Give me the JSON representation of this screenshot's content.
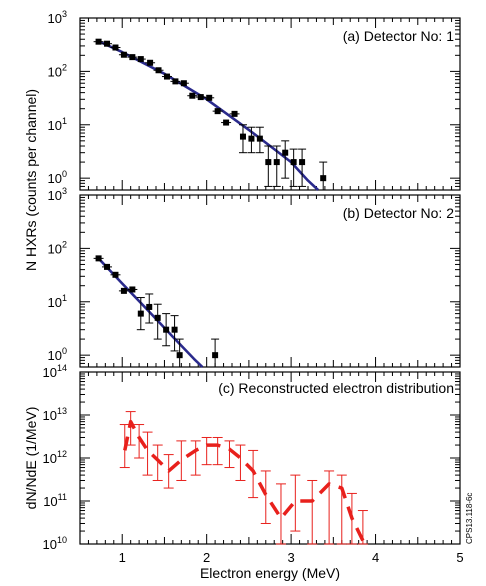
{
  "figure_code": "CPS13.118-6c",
  "colors": {
    "fit": "#2a2a8c",
    "reconstruction": "#e8201c",
    "points": "#000000",
    "axes": "#000000"
  },
  "chart_data": [
    {
      "type": "scatter",
      "title": "(a) Detector No: 1",
      "xlim": [
        0.5,
        5
      ],
      "ylim": [
        0.6,
        1000
      ],
      "yscale": "log",
      "y_ticks": [
        {
          "base": "10",
          "exp": "0"
        },
        {
          "base": "10",
          "exp": "1"
        },
        {
          "base": "10",
          "exp": "2"
        },
        {
          "base": "10",
          "exp": "3"
        }
      ],
      "points": [
        {
          "x": 0.72,
          "y": 360
        },
        {
          "x": 0.82,
          "y": 330
        },
        {
          "x": 0.92,
          "y": 280
        },
        {
          "x": 1.02,
          "y": 205
        },
        {
          "x": 1.12,
          "y": 185
        },
        {
          "x": 1.22,
          "y": 170
        },
        {
          "x": 1.33,
          "y": 145
        },
        {
          "x": 1.43,
          "y": 105
        },
        {
          "x": 1.53,
          "y": 80
        },
        {
          "x": 1.63,
          "y": 65
        },
        {
          "x": 1.73,
          "y": 60
        },
        {
          "x": 1.83,
          "y": 35
        },
        {
          "x": 1.93,
          "y": 33
        },
        {
          "x": 2.03,
          "y": 32
        },
        {
          "x": 2.13,
          "y": 18
        },
        {
          "x": 2.23,
          "y": 11
        },
        {
          "x": 2.33,
          "y": 16
        },
        {
          "x": 2.43,
          "y": 6,
          "err": [
            3,
            10
          ]
        },
        {
          "x": 2.53,
          "y": 5.5,
          "err": [
            3,
            9
          ]
        },
        {
          "x": 2.63,
          "y": 5.5,
          "err": [
            3,
            9
          ]
        },
        {
          "x": 2.73,
          "y": 2,
          "err": [
            0.7,
            4
          ]
        },
        {
          "x": 2.83,
          "y": 2,
          "err": [
            0.7,
            4
          ]
        },
        {
          "x": 2.93,
          "y": 3,
          "err": [
            1,
            5
          ]
        },
        {
          "x": 3.03,
          "y": 2,
          "err": [
            0.7,
            3.5
          ]
        },
        {
          "x": 3.13,
          "y": 2,
          "err": [
            0.7,
            3.5
          ]
        },
        {
          "x": 3.38,
          "y": 1,
          "err": [
            0.6,
            2
          ]
        }
      ],
      "fit": [
        {
          "x": 0.7,
          "y": 380
        },
        {
          "x": 1.0,
          "y": 230
        },
        {
          "x": 1.5,
          "y": 90
        },
        {
          "x": 2.0,
          "y": 30
        },
        {
          "x": 2.5,
          "y": 8
        },
        {
          "x": 2.8,
          "y": 3.5
        },
        {
          "x": 3.0,
          "y": 2.0
        },
        {
          "x": 3.2,
          "y": 0.9
        },
        {
          "x": 3.32,
          "y": 0.6
        }
      ]
    },
    {
      "type": "scatter",
      "title": "(b) Detector No: 2",
      "xlim": [
        0.5,
        5
      ],
      "ylim": [
        0.6,
        1000
      ],
      "yscale": "log",
      "y_ticks": [
        {
          "base": "10",
          "exp": "0"
        },
        {
          "base": "10",
          "exp": "1"
        },
        {
          "base": "10",
          "exp": "2"
        },
        {
          "base": "10",
          "exp": "3"
        }
      ],
      "points": [
        {
          "x": 0.72,
          "y": 65
        },
        {
          "x": 0.82,
          "y": 45
        },
        {
          "x": 0.92,
          "y": 32
        },
        {
          "x": 1.02,
          "y": 16
        },
        {
          "x": 1.12,
          "y": 17
        },
        {
          "x": 1.22,
          "y": 6,
          "err": [
            3,
            12
          ]
        },
        {
          "x": 1.32,
          "y": 8,
          "err": [
            4,
            14
          ]
        },
        {
          "x": 1.42,
          "y": 5,
          "err": [
            2,
            9
          ]
        },
        {
          "x": 1.52,
          "y": 3,
          "err": [
            1.5,
            6
          ]
        },
        {
          "x": 1.62,
          "y": 3,
          "err": [
            1.2,
            5.5
          ]
        },
        {
          "x": 1.68,
          "y": 1,
          "err": [
            0.6,
            2
          ]
        },
        {
          "x": 2.1,
          "y": 1,
          "err": [
            0.6,
            2
          ]
        }
      ],
      "fit": [
        {
          "x": 0.7,
          "y": 70
        },
        {
          "x": 1.0,
          "y": 22
        },
        {
          "x": 1.3,
          "y": 7
        },
        {
          "x": 1.6,
          "y": 2.2
        },
        {
          "x": 1.85,
          "y": 0.85
        },
        {
          "x": 1.95,
          "y": 0.6
        }
      ]
    },
    {
      "type": "line",
      "title": "(c) Reconstructed electron distribution",
      "xlabel": "Electron energy (MeV)",
      "ylabel": "dN/NdE (1/MeV)",
      "xlim": [
        0.5,
        5
      ],
      "ylim": [
        10000000000.0,
        100000000000000.0
      ],
      "yscale": "log",
      "y_ticks": [
        {
          "base": "10",
          "exp": "10"
        },
        {
          "base": "10",
          "exp": "11"
        },
        {
          "base": "10",
          "exp": "12"
        },
        {
          "base": "10",
          "exp": "13"
        },
        {
          "base": "10",
          "exp": "14"
        }
      ],
      "x_ticks": [
        "1",
        "2",
        "3",
        "4",
        "5"
      ],
      "series": [
        {
          "points": [
            {
              "x": 1.03,
              "y": 1500000000000.0,
              "err": [
                600000000000.0,
                6000000000000.0
              ]
            },
            {
              "x": 1.1,
              "y": 7000000000000.0,
              "err": [
                2000000000000.0,
                12000000000000.0
              ]
            },
            {
              "x": 1.2,
              "y": 3000000000000.0,
              "err": [
                1000000000000.0,
                6000000000000.0
              ]
            },
            {
              "x": 1.3,
              "y": 1500000000000.0,
              "err": [
                400000000000.0,
                4000000000000.0
              ]
            },
            {
              "x": 1.42,
              "y": 900000000000.0,
              "err": [
                300000000000.0,
                2000000000000.0
              ]
            },
            {
              "x": 1.55,
              "y": 500000000000.0,
              "err": [
                200000000000.0,
                1200000000000.0
              ]
            },
            {
              "x": 1.7,
              "y": 900000000000.0,
              "err": [
                300000000000.0,
                2500000000000.0
              ]
            },
            {
              "x": 1.87,
              "y": 1500000000000.0,
              "err": [
                400000000000.0,
                2500000000000.0
              ]
            },
            {
              "x": 2.0,
              "y": 2000000000000.0,
              "err": [
                700000000000.0,
                3000000000000.0
              ]
            },
            {
              "x": 2.13,
              "y": 2000000000000.0,
              "err": [
                700000000000.0,
                3000000000000.0
              ]
            },
            {
              "x": 2.27,
              "y": 1600000000000.0,
              "err": [
                600000000000.0,
                2500000000000.0
              ]
            },
            {
              "x": 2.4,
              "y": 1000000000000.0,
              "err": [
                300000000000.0,
                2000000000000.0
              ]
            },
            {
              "x": 2.55,
              "y": 500000000000.0,
              "err": [
                120000000000.0,
                1500000000000.0
              ]
            },
            {
              "x": 2.7,
              "y": 140000000000.0,
              "err": [
                30000000000.0,
                500000000000.0
              ]
            },
            {
              "x": 2.88,
              "y": 40000000000.0,
              "err": [
                10000000000.0,
                250000000000.0
              ]
            },
            {
              "x": 3.05,
              "y": 100000000000.0,
              "err": [
                20000000000.0,
                400000000000.0
              ]
            },
            {
              "x": 3.25,
              "y": 100000000000.0,
              "err": [
                10000000000.0,
                300000000000.0
              ]
            },
            {
              "x": 3.45,
              "y": 250000000000.0,
              "err": [
                10000000000.0,
                500000000000.0
              ]
            },
            {
              "x": 3.6,
              "y": 200000000000.0,
              "err": [
                10000000000.0,
                400000000000.0
              ]
            },
            {
              "x": 3.72,
              "y": 40000000000.0,
              "err": [
                10000000000.0,
                150000000000.0
              ]
            },
            {
              "x": 3.85,
              "y": 12000000000.0,
              "err": [
                10000000000.0,
                60000000000.0
              ]
            }
          ]
        }
      ]
    }
  ],
  "shared_ylabel": "N HXRs (counts per channel)"
}
